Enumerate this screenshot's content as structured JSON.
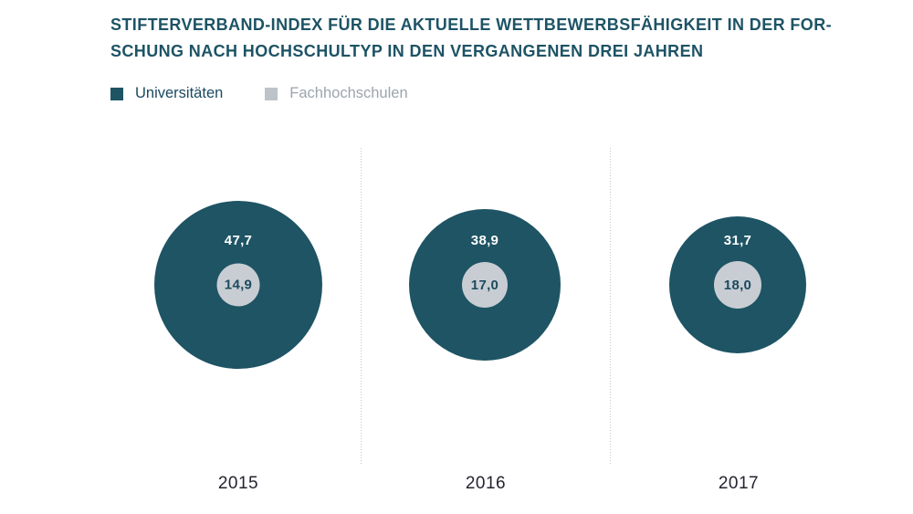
{
  "title": {
    "line1": "STIFTERVERBAND-INDEX FÜR DIE AKTUELLE WETTBEWERBSFÄHIGKEIT IN DER FOR-",
    "line2": "SCHUNG NACH HOCHSCHULTYP IN DEN VERGANGENEN DREI JAHREN"
  },
  "legend": {
    "items": [
      {
        "label": "Universitäten",
        "color": "#1e5464"
      },
      {
        "label": "Fachhochschulen",
        "color": "#bdc3c8"
      }
    ]
  },
  "chart_data": {
    "type": "bubble",
    "title": "Stifterverband-Index für die aktuelle Wettbewerbsfähigkeit in der Forschung nach Hochschultyp in den vergangenen drei Jahren",
    "categories": [
      "2015",
      "2016",
      "2017"
    ],
    "series": [
      {
        "name": "Universitäten",
        "values": [
          47.7,
          38.9,
          31.7
        ],
        "labels": [
          "47,7",
          "38,9",
          "31,7"
        ],
        "color": "#1e5464"
      },
      {
        "name": "Fachhochschulen",
        "values": [
          14.9,
          17.0,
          18.0
        ],
        "labels": [
          "14,9",
          "17,0",
          "18,0"
        ],
        "color": "#c8cdd3"
      }
    ],
    "layout": {
      "outer_scale": 26.6,
      "inner_scale": 12.2,
      "legend_position": "top-left",
      "grid": false,
      "separator_style": "dotted-vertical",
      "separator_color": "#c4c6c8"
    }
  },
  "colors": {
    "background": "#ffffff",
    "title_text": "#1d5365",
    "outer_bubble": "#1e5464",
    "inner_bubble": "#c8cdd3",
    "outer_value_text": "#ffffff",
    "inner_value_text": "#1d4a5e",
    "year_label_text": "#23242e",
    "legend_uni_text": "#1a4a61",
    "legend_fach_text": "#9aa5ac",
    "divider": "#c4c6c8"
  }
}
